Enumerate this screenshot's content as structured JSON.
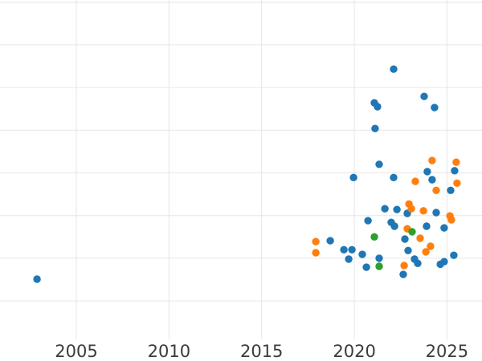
{
  "chart_data": {
    "type": "scatter",
    "title": "",
    "xlabel": "",
    "ylabel": "",
    "grid": true,
    "legend": false,
    "background_color": "#ffffff",
    "gridline_color": "#e6e6e6",
    "tick_label_color": "#3b3b3b",
    "x_axis": {
      "range": [
        2000.88,
        2026.89
      ],
      "tick_values": [
        2005,
        2010,
        2015,
        2020,
        2025
      ],
      "tick_labels": [
        "2005",
        "2010",
        "2015",
        "2020",
        "2025"
      ]
    },
    "y_axis": {
      "range": [
        -0.9,
        7.05
      ],
      "tick_values": [
        0,
        1,
        2,
        3,
        4,
        5,
        6,
        7
      ],
      "tick_labels": []
    },
    "series": [
      {
        "name": "series-1-blue",
        "color": "#1f77b4",
        "points": [
          [
            2002.88,
            0.51
          ],
          [
            2022.12,
            5.43
          ],
          [
            2021.08,
            4.64
          ],
          [
            2021.25,
            4.55
          ],
          [
            2023.77,
            4.79
          ],
          [
            2024.33,
            4.53
          ],
          [
            2021.12,
            4.04
          ],
          [
            2021.34,
            3.2
          ],
          [
            2019.96,
            2.89
          ],
          [
            2022.12,
            2.89
          ],
          [
            2023.94,
            3.03
          ],
          [
            2025.41,
            3.05
          ],
          [
            2024.2,
            2.84
          ],
          [
            2025.2,
            2.59
          ],
          [
            2021.65,
            2.16
          ],
          [
            2022.3,
            2.14
          ],
          [
            2022.86,
            2.05
          ],
          [
            2024.42,
            2.07
          ],
          [
            2020.74,
            1.88
          ],
          [
            2021.99,
            1.84
          ],
          [
            2022.17,
            1.75
          ],
          [
            2023.9,
            1.75
          ],
          [
            2024.85,
            1.71
          ],
          [
            2022.73,
            1.45
          ],
          [
            2018.7,
            1.41
          ],
          [
            2019.44,
            1.2
          ],
          [
            2019.87,
            1.2
          ],
          [
            2020.43,
            1.09
          ],
          [
            2019.7,
            0.98
          ],
          [
            2021.34,
            1.0
          ],
          [
            2020.65,
            0.79
          ],
          [
            2022.9,
            1.18
          ],
          [
            2023.25,
            0.98
          ],
          [
            2023.42,
            0.88
          ],
          [
            2024.64,
            0.86
          ],
          [
            2024.85,
            0.92
          ],
          [
            2025.37,
            1.07
          ],
          [
            2022.64,
            0.62
          ]
        ]
      },
      {
        "name": "series-2-orange",
        "color": "#ff7f0e",
        "points": [
          [
            2017.92,
            1.39
          ],
          [
            2017.92,
            1.13
          ],
          [
            2024.2,
            3.29
          ],
          [
            2025.5,
            3.25
          ],
          [
            2023.29,
            2.8
          ],
          [
            2025.54,
            2.76
          ],
          [
            2024.42,
            2.59
          ],
          [
            2022.95,
            2.27
          ],
          [
            2023.08,
            2.16
          ],
          [
            2023.73,
            2.11
          ],
          [
            2025.16,
            1.99
          ],
          [
            2025.24,
            1.9
          ],
          [
            2022.86,
            1.69
          ],
          [
            2023.55,
            1.47
          ],
          [
            2024.11,
            1.28
          ],
          [
            2023.86,
            1.15
          ],
          [
            2022.69,
            0.83
          ]
        ]
      },
      {
        "name": "series-3-green",
        "color": "#2ca02c",
        "points": [
          [
            2021.08,
            1.5
          ],
          [
            2023.12,
            1.62
          ],
          [
            2021.34,
            0.81
          ]
        ]
      }
    ]
  }
}
